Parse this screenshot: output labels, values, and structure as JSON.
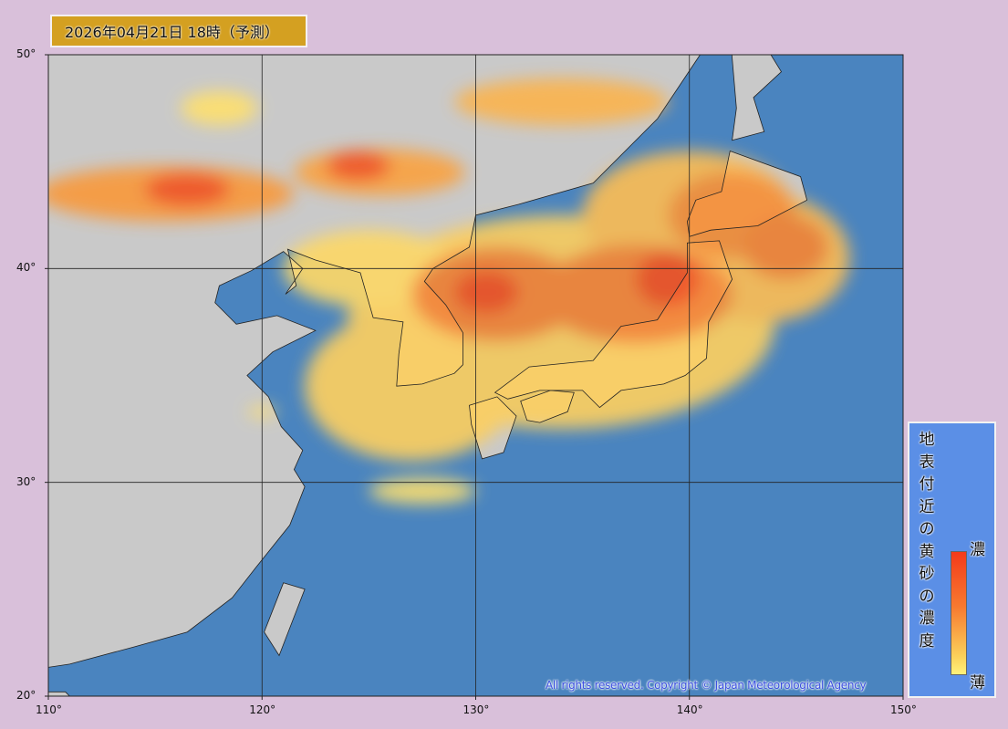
{
  "title": "2026年04月21日 18時（予測）",
  "map": {
    "lon_range": [
      110,
      150
    ],
    "lat_range": [
      20,
      50
    ],
    "gridlines": true,
    "lon_ticks": [
      110,
      120,
      130,
      140,
      150
    ],
    "lat_ticks": [
      20,
      30,
      40,
      50
    ],
    "lon_labels": [
      "110°",
      "120°",
      "130°",
      "140°",
      "150°"
    ],
    "lat_labels": [
      "20°",
      "30°",
      "40°",
      "50°"
    ],
    "colors": {
      "ocean": "#4a84bf",
      "land": "#c9c9c9",
      "background": "#d9c0da",
      "low": "#fff27a",
      "mid": "#f89a3c",
      "high": "#f03418"
    },
    "dust_patches": [
      {
        "lon": 134,
        "lat": 37.5,
        "rlon": 10,
        "rlat": 5,
        "level": 0.2
      },
      {
        "lon": 127,
        "lat": 34.5,
        "rlon": 5,
        "rlat": 3.5,
        "level": 0.2
      },
      {
        "lon": 140,
        "lat": 42.5,
        "rlon": 5,
        "rlat": 3,
        "level": 0.3
      },
      {
        "lon": 143.5,
        "lat": 40.5,
        "rlon": 4,
        "rlat": 3,
        "level": 0.3
      },
      {
        "lon": 125,
        "lat": 40,
        "rlon": 4,
        "rlat": 1.8,
        "level": 0.15
      },
      {
        "lon": 131,
        "lat": 38.8,
        "rlon": 4,
        "rlat": 2.2,
        "level": 0.6
      },
      {
        "lon": 137.5,
        "lat": 38.8,
        "rlon": 4.5,
        "rlat": 2.3,
        "level": 0.6
      },
      {
        "lon": 142,
        "lat": 42.5,
        "rlon": 3,
        "rlat": 2,
        "level": 0.55
      },
      {
        "lon": 144.5,
        "lat": 41,
        "rlon": 2,
        "rlat": 1.5,
        "level": 0.6
      },
      {
        "lon": 130.5,
        "lat": 38.9,
        "rlon": 1.5,
        "rlat": 1,
        "level": 0.85
      },
      {
        "lon": 139,
        "lat": 39.5,
        "rlon": 1.5,
        "rlat": 1.3,
        "level": 0.85
      },
      {
        "lon": 115.5,
        "lat": 43.5,
        "rlon": 6,
        "rlat": 1.3,
        "level": 0.5
      },
      {
        "lon": 116.5,
        "lat": 43.7,
        "rlon": 2,
        "rlat": 0.8,
        "level": 0.85
      },
      {
        "lon": 125.5,
        "lat": 44.5,
        "rlon": 4,
        "rlat": 1.1,
        "level": 0.45
      },
      {
        "lon": 124.5,
        "lat": 44.8,
        "rlon": 1.5,
        "rlat": 0.7,
        "level": 0.85
      },
      {
        "lon": 134,
        "lat": 47.8,
        "rlon": 5,
        "rlat": 1.1,
        "level": 0.35
      },
      {
        "lon": 118,
        "lat": 47.5,
        "rlon": 1.8,
        "rlat": 0.8,
        "level": 0.1
      },
      {
        "lon": 127.5,
        "lat": 29.6,
        "rlon": 2.5,
        "rlat": 0.6,
        "level": 0.1
      },
      {
        "lon": 120,
        "lat": 33.3,
        "rlon": 0.7,
        "rlat": 0.25,
        "level": 0.1
      }
    ]
  },
  "legend": {
    "title": "地表付近の黄砂の濃度",
    "high_label": "濃",
    "low_label": "薄"
  },
  "copyright": "All rights reserved. Copyright © Japan Meteorological Agency"
}
